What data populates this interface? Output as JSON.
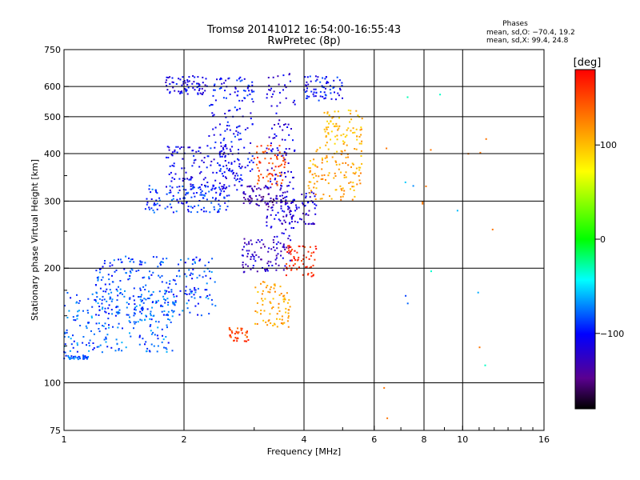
{
  "chart_data": {
    "type": "scatter",
    "title": "Tromsø 20141012 16:54:00-16:55:43",
    "subtitle": "RwPretec (8p)",
    "xlabel": "Frequency [MHz]",
    "ylabel": "Stationary phase Virtual Height [km]",
    "x_scale": "log",
    "y_scale": "log",
    "xlim": [
      1,
      16
    ],
    "ylim": [
      75,
      750
    ],
    "x_ticks": [
      "1",
      "2",
      "4",
      "6",
      "8",
      "10",
      "16"
    ],
    "y_ticks": [
      "75",
      "100",
      "200",
      "300",
      "400",
      "500",
      "600",
      "750"
    ],
    "grid": true,
    "phase_stats": {
      "heading": "Phases",
      "line_o": "mean, sd,O: −70.4, 19.2",
      "line_x": "mean, sd,X:  99.4, 24.8"
    },
    "colorbar": {
      "label": "[deg]",
      "ticks": [
        "100",
        "0",
        "−100"
      ],
      "tick_values": [
        100,
        0,
        -100
      ],
      "range": [
        -180,
        180
      ],
      "colormap": "rainbow: black/purple (−180) → blue → cyan → green (0) → yellow → orange → red (+180)"
    },
    "clusters": [
      {
        "x_range": [
          1.0,
          1.15
        ],
        "y_range": [
          115,
          118
        ],
        "phase": -80
      },
      {
        "x_range": [
          1.0,
          1.9
        ],
        "y_range": [
          120,
          175
        ],
        "phase": -80
      },
      {
        "x_range": [
          1.2,
          2.4
        ],
        "y_range": [
          150,
          215
        ],
        "phase": -85
      },
      {
        "x_range": [
          1.6,
          2.6
        ],
        "y_range": [
          280,
          330
        ],
        "phase": -90
      },
      {
        "x_range": [
          1.8,
          2.8
        ],
        "y_range": [
          320,
          420
        ],
        "phase": -110
      },
      {
        "x_range": [
          2.3,
          3.0
        ],
        "y_range": [
          340,
          640
        ],
        "phase": -100
      },
      {
        "x_range": [
          1.8,
          2.3
        ],
        "y_range": [
          570,
          640
        ],
        "phase": -110
      },
      {
        "x_range": [
          2.8,
          3.6
        ],
        "y_range": [
          290,
          330
        ],
        "phase": -140
      },
      {
        "x_range": [
          3.0,
          3.6
        ],
        "y_range": [
          330,
          420
        ],
        "phase": 150
      },
      {
        "x_range": [
          3.2,
          3.8
        ],
        "y_range": [
          240,
          650
        ],
        "phase": -115
      },
      {
        "x_range": [
          3.5,
          4.3
        ],
        "y_range": [
          260,
          320
        ],
        "phase": -120
      },
      {
        "x_range": [
          2.8,
          3.7
        ],
        "y_range": [
          195,
          240
        ],
        "phase": -125
      },
      {
        "x_range": [
          3.0,
          3.7
        ],
        "y_range": [
          140,
          185
        ],
        "phase": 110
      },
      {
        "x_range": [
          2.6,
          2.9
        ],
        "y_range": [
          128,
          140
        ],
        "phase": 150
      },
      {
        "x_range": [
          3.6,
          4.3
        ],
        "y_range": [
          190,
          230
        ],
        "phase": 160
      },
      {
        "x_range": [
          4.1,
          5.6
        ],
        "y_range": [
          300,
          420
        ],
        "phase": 110
      },
      {
        "x_range": [
          4.5,
          5.6
        ],
        "y_range": [
          420,
          520
        ],
        "phase": 100
      },
      {
        "x_range": [
          4.0,
          5.0
        ],
        "y_range": [
          550,
          640
        ],
        "phase": -100
      },
      {
        "x_range": [
          6.0,
          12.0
        ],
        "y_range": [
          80,
          600
        ],
        "phase": 130
      }
    ]
  }
}
